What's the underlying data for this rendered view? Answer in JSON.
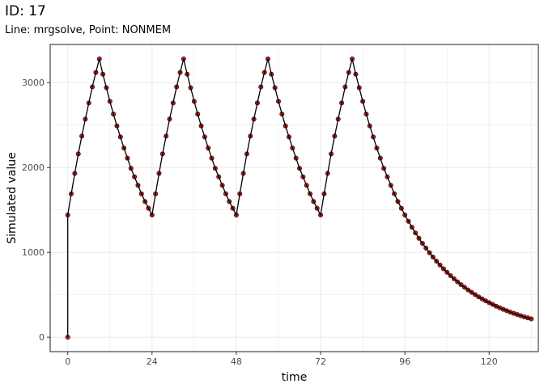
{
  "title": "ID: 17",
  "subtitle": "Line: mrgsolve, Point: NONMEM",
  "chart_data": {
    "type": "line",
    "xlabel": "time",
    "ylabel": "Simulated value",
    "xlim": [
      -5,
      134
    ],
    "ylim": [
      -170,
      3450
    ],
    "x_ticks": [
      0,
      24,
      48,
      72,
      96,
      120
    ],
    "y_ticks": [
      0,
      1000,
      2000,
      3000
    ],
    "grid": true,
    "colors": {
      "line": "#000000",
      "point": "#b22222",
      "grid": "#ebebeb"
    },
    "x": [
      0,
      0,
      1,
      2,
      3,
      4,
      5,
      6,
      7,
      8,
      9,
      10,
      11,
      12,
      13,
      14,
      15,
      16,
      17,
      18,
      19,
      20,
      21,
      22,
      23,
      24,
      25,
      26,
      27,
      28,
      29,
      30,
      31,
      32,
      33,
      34,
      35,
      36,
      37,
      38,
      39,
      40,
      41,
      42,
      43,
      44,
      45,
      46,
      47,
      48,
      49,
      50,
      51,
      52,
      53,
      54,
      55,
      56,
      57,
      58,
      59,
      60,
      61,
      62,
      63,
      64,
      65,
      66,
      67,
      68,
      69,
      70,
      71,
      72,
      73,
      74,
      75,
      76,
      77,
      78,
      79,
      80,
      81,
      82,
      83,
      84,
      85,
      86,
      87,
      88,
      89,
      90,
      91,
      92,
      93,
      94,
      95,
      96,
      97,
      98,
      99,
      100,
      101,
      102,
      103,
      104,
      105,
      106,
      107,
      108,
      109,
      110,
      111,
      112,
      113,
      114,
      115,
      116,
      117,
      118,
      119,
      120,
      121,
      122,
      123,
      124,
      125,
      126,
      127,
      128,
      129,
      130,
      131,
      132
    ],
    "y": [
      0,
      1440,
      1690,
      1930,
      2160,
      2370,
      2570,
      2760,
      2950,
      3120,
      3280,
      3100,
      2940,
      2780,
      2630,
      2490,
      2360,
      2230,
      2110,
      1990,
      1890,
      1790,
      1690,
      1600,
      1520,
      1440,
      1690,
      1930,
      2160,
      2370,
      2570,
      2760,
      2950,
      3120,
      3280,
      3100,
      2940,
      2780,
      2630,
      2490,
      2360,
      2230,
      2110,
      1990,
      1890,
      1790,
      1690,
      1600,
      1520,
      1440,
      1690,
      1930,
      2160,
      2370,
      2570,
      2760,
      2950,
      3120,
      3280,
      3100,
      2940,
      2780,
      2630,
      2490,
      2360,
      2230,
      2110,
      1990,
      1890,
      1790,
      1690,
      1600,
      1520,
      1440,
      1690,
      1930,
      2160,
      2370,
      2570,
      2760,
      2950,
      3120,
      3280,
      3100,
      2940,
      2780,
      2630,
      2490,
      2360,
      2230,
      2110,
      1990,
      1890,
      1790,
      1690,
      1600,
      1520,
      1440,
      1366,
      1296,
      1229,
      1166,
      1106,
      1050,
      996,
      945,
      896,
      850,
      807,
      765,
      726,
      689,
      653,
      620,
      588,
      558,
      529,
      502,
      476,
      452,
      429,
      407,
      386,
      366,
      347,
      329,
      312,
      296,
      281,
      267,
      253,
      240,
      228,
      216
    ]
  }
}
